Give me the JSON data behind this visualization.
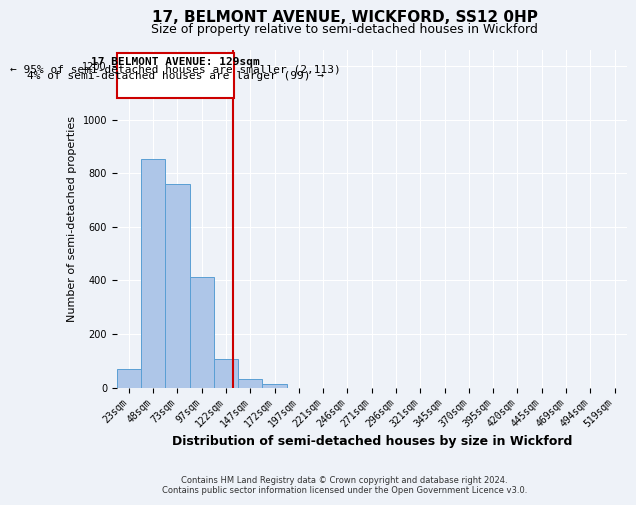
{
  "title": "17, BELMONT AVENUE, WICKFORD, SS12 0HP",
  "subtitle": "Size of property relative to semi-detached houses in Wickford",
  "xlabel": "Distribution of semi-detached houses by size in Wickford",
  "ylabel": "Number of semi-detached properties",
  "footer_line1": "Contains HM Land Registry data © Crown copyright and database right 2024.",
  "footer_line2": "Contains public sector information licensed under the Open Government Licence v3.0.",
  "bar_labels": [
    "23sqm",
    "48sqm",
    "73sqm",
    "97sqm",
    "122sqm",
    "147sqm",
    "172sqm",
    "197sqm",
    "221sqm",
    "246sqm",
    "271sqm",
    "296sqm",
    "321sqm",
    "345sqm",
    "370sqm",
    "395sqm",
    "420sqm",
    "445sqm",
    "469sqm",
    "494sqm",
    "519sqm"
  ],
  "bar_values": [
    68,
    853,
    760,
    413,
    105,
    30,
    14,
    0,
    0,
    0,
    0,
    0,
    0,
    0,
    0,
    0,
    0,
    0,
    0,
    0,
    0
  ],
  "bar_color": "#aec6e8",
  "bar_edge_color": "#5a9fd4",
  "ylim": [
    0,
    1260
  ],
  "yticks": [
    0,
    200,
    400,
    600,
    800,
    1000,
    1200
  ],
  "property_line_color": "#cc0000",
  "annotation_box_color": "#cc0000",
  "annotation_title": "17 BELMONT AVENUE: 129sqm",
  "annotation_line1": "← 95% of semi-detached houses are smaller (2,113)",
  "annotation_line2": "4% of semi-detached houses are larger (99) →",
  "background_color": "#eef2f8",
  "grid_color": "#ffffff",
  "title_fontsize": 11,
  "subtitle_fontsize": 9,
  "xlabel_fontsize": 9,
  "ylabel_fontsize": 8,
  "tick_label_fontsize": 7,
  "annotation_fontsize": 8,
  "footer_fontsize": 6
}
